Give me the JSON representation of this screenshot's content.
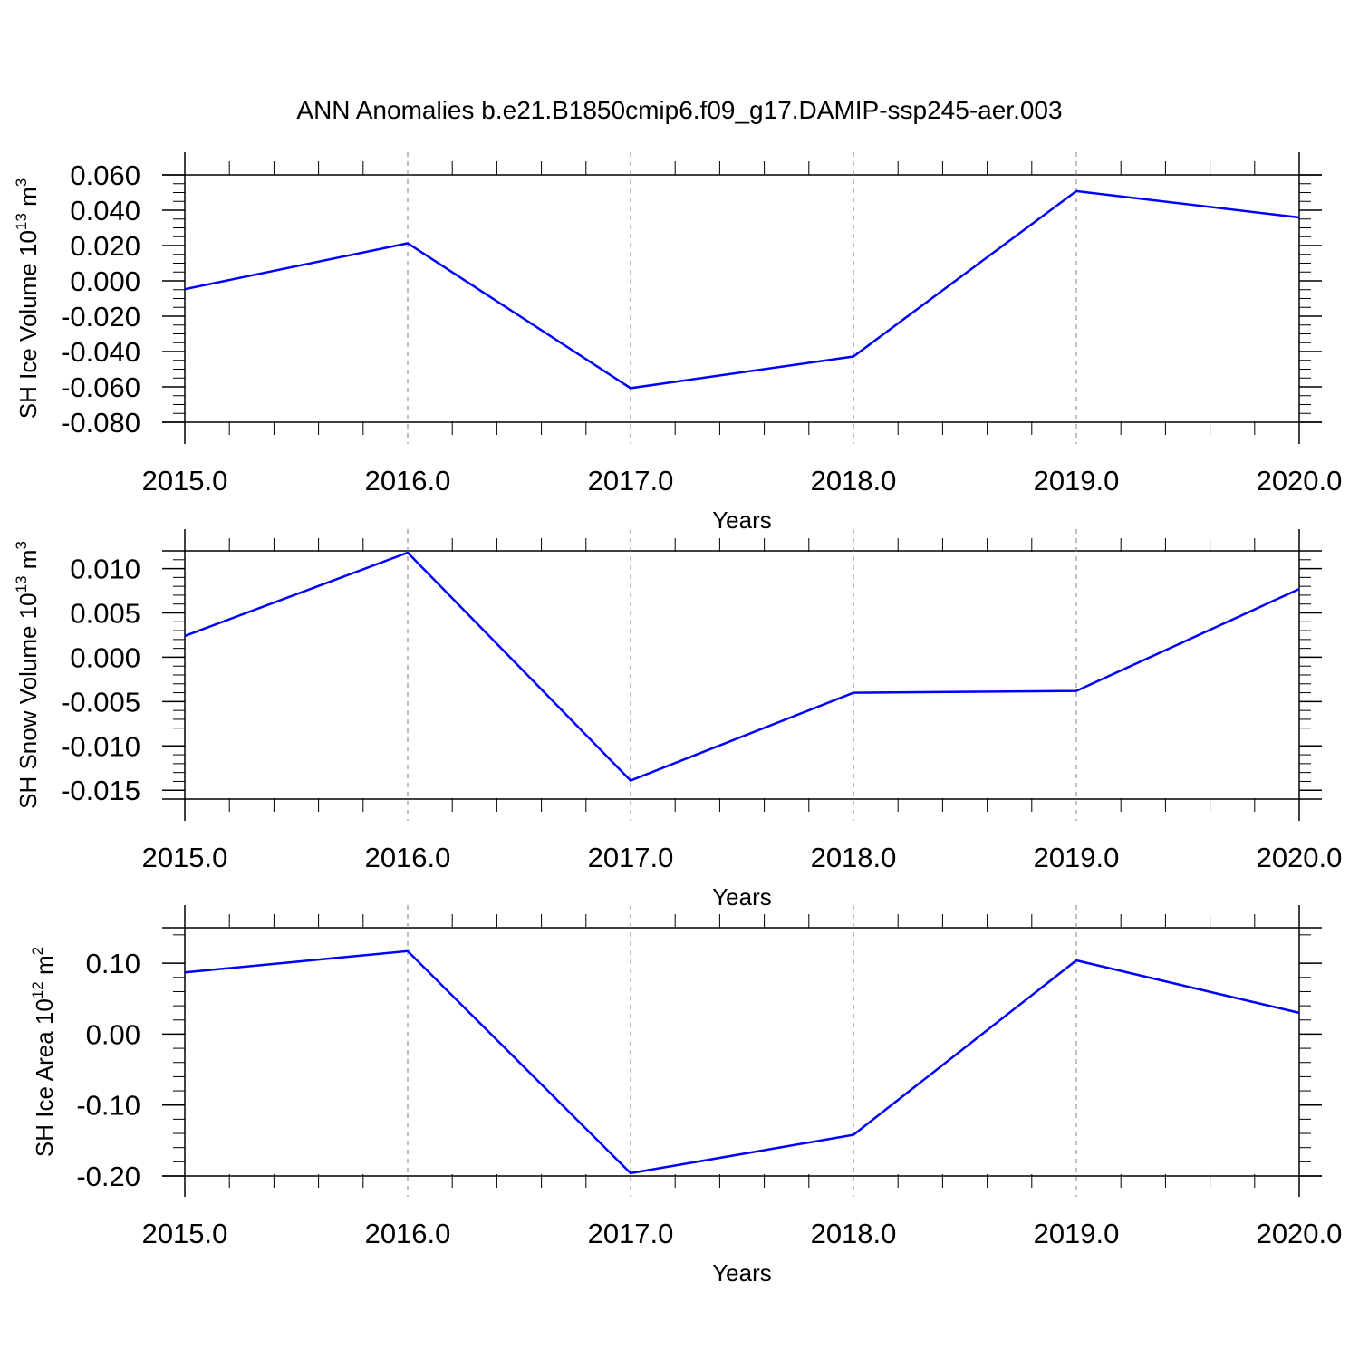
{
  "figure": {
    "title": "ANN Anomalies b.e21.B1850cmip6.f09_g17.DAMIP-ssp245-aer.003"
  },
  "colors": {
    "series_line": "#0000ff",
    "axis": "#000000",
    "grid": "#808080",
    "background": "#ffffff"
  },
  "chart_data": [
    {
      "type": "line",
      "title": "",
      "ylabel": "SH Ice Volume 10",
      "ylabel_exponent": "13",
      "ylabel_unit": "m",
      "ylabel_unit_exponent": "3",
      "xlabel": "Years",
      "x": [
        2015.0,
        2016.0,
        2017.0,
        2018.0,
        2019.0,
        2020.0
      ],
      "x_tick_labels": [
        "2015.0",
        "2016.0",
        "2017.0",
        "2018.0",
        "2019.0",
        "2020.0"
      ],
      "xlim": [
        2015.0,
        2020.0
      ],
      "ylim": [
        -0.08,
        0.06
      ],
      "y_ticks": [
        0.06,
        0.04,
        0.02,
        0.0,
        -0.02,
        -0.04,
        -0.06,
        -0.08
      ],
      "y_tick_labels": [
        "0.060",
        "0.040",
        "0.020",
        "0.000",
        "-0.020",
        "-0.040",
        "-0.060",
        "-0.080"
      ],
      "y_minor_step": 0.005,
      "series": [
        {
          "values": [
            -0.0047,
            0.0213,
            -0.0607,
            -0.0428,
            0.0508,
            0.0359
          ]
        }
      ],
      "grid": "vertical dashed at major x ticks"
    },
    {
      "type": "line",
      "title": "",
      "ylabel": "SH Snow Volume 10",
      "ylabel_exponent": "13",
      "ylabel_unit": "m",
      "ylabel_unit_exponent": "3",
      "xlabel": "Years",
      "x": [
        2015.0,
        2016.0,
        2017.0,
        2018.0,
        2019.0,
        2020.0
      ],
      "x_tick_labels": [
        "2015.0",
        "2016.0",
        "2017.0",
        "2018.0",
        "2019.0",
        "2020.0"
      ],
      "xlim": [
        2015.0,
        2020.0
      ],
      "ylim": [
        -0.016,
        0.012
      ],
      "y_ticks": [
        0.01,
        0.005,
        0.0,
        -0.005,
        -0.01,
        -0.015
      ],
      "y_tick_labels": [
        "0.010",
        "0.005",
        "0.000",
        "-0.005",
        "-0.010",
        "-0.015"
      ],
      "y_minor_step": 0.001,
      "series": [
        {
          "values": [
            0.0024,
            0.0118,
            -0.0139,
            -0.004,
            -0.0038,
            0.0077
          ]
        }
      ],
      "grid": "vertical dashed at major x ticks"
    },
    {
      "type": "line",
      "title": "",
      "ylabel": "SH Ice Area 10",
      "ylabel_exponent": "12",
      "ylabel_unit": "m",
      "ylabel_unit_exponent": "2",
      "xlabel": "Years",
      "x": [
        2015.0,
        2016.0,
        2017.0,
        2018.0,
        2019.0,
        2020.0
      ],
      "x_tick_labels": [
        "2015.0",
        "2016.0",
        "2017.0",
        "2018.0",
        "2019.0",
        "2020.0"
      ],
      "xlim": [
        2015.0,
        2020.0
      ],
      "ylim": [
        -0.2,
        0.15
      ],
      "y_ticks": [
        0.1,
        0.0,
        -0.1,
        -0.2
      ],
      "y_tick_labels": [
        "0.10",
        "0.00",
        "-0.10",
        "-0.20"
      ],
      "y_minor_step": 0.02,
      "series": [
        {
          "values": [
            0.087,
            0.117,
            -0.196,
            -0.142,
            0.104,
            0.03
          ]
        }
      ],
      "grid": "vertical dashed at major x ticks"
    }
  ]
}
